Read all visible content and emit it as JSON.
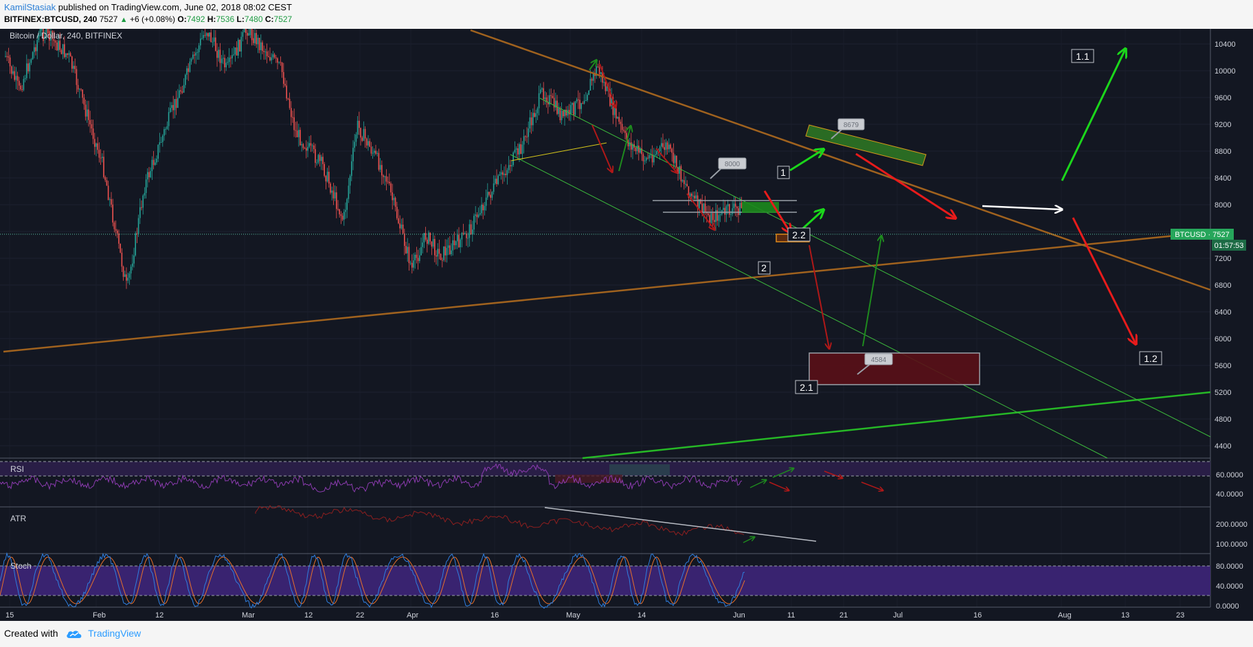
{
  "header": {
    "author": "KamilStasiak",
    "published_text": "published on TradingView.com, June 02, 2018 08:02 CEST",
    "symbol": "BITFINEX:BTCUSD, 240",
    "last": "7527",
    "change_text": "+6 (+0.08%)",
    "o_label": "O:",
    "o_value": "7492",
    "h_label": "H:",
    "h_value": "7536",
    "l_label": "L:",
    "l_value": "7480",
    "c_label": "C:",
    "c_value": "7527"
  },
  "chart": {
    "title": "Bitcoin / Dollar, 240, BITFINEX",
    "price_ticks": [
      "10400",
      "10000",
      "9600",
      "9200",
      "8800",
      "8400",
      "8000",
      "7600",
      "7200",
      "6800",
      "6400",
      "6000",
      "5600",
      "5200",
      "4800",
      "4400"
    ],
    "price_badge": "BTCUSD · 7527",
    "countdown": "01:57:53",
    "date_ticks": [
      "15",
      "Feb",
      "12",
      "Mar",
      "12",
      "22",
      "Apr",
      "16",
      "May",
      "14",
      "Jun",
      "11",
      "21",
      "Jul",
      "16",
      "Aug",
      "13",
      "23"
    ],
    "labels": {
      "l1": "1",
      "l11": "1.1",
      "l12": "1.2",
      "l2": "2",
      "l21": "2.1",
      "l22": "2.2"
    },
    "callouts": {
      "c8679": "8679",
      "c8000": "8000",
      "c4584": "4584"
    }
  },
  "indicators": {
    "rsi": {
      "name": "RSI",
      "ticks": [
        "60.0000",
        "40.0000"
      ]
    },
    "atr": {
      "name": "ATR",
      "ticks": [
        "200.0000",
        "100.0000"
      ]
    },
    "stoch": {
      "name": "Stoch",
      "ticks": [
        "80.0000",
        "40.0000",
        "0.0000"
      ]
    }
  },
  "footer": {
    "created_with": "Created with",
    "brand": "TradingView"
  },
  "colors": {
    "background": "#131722",
    "up": "#26a69a",
    "down": "#ef5350",
    "trendline": "#a0621e",
    "channel": "#3cba3c"
  }
}
